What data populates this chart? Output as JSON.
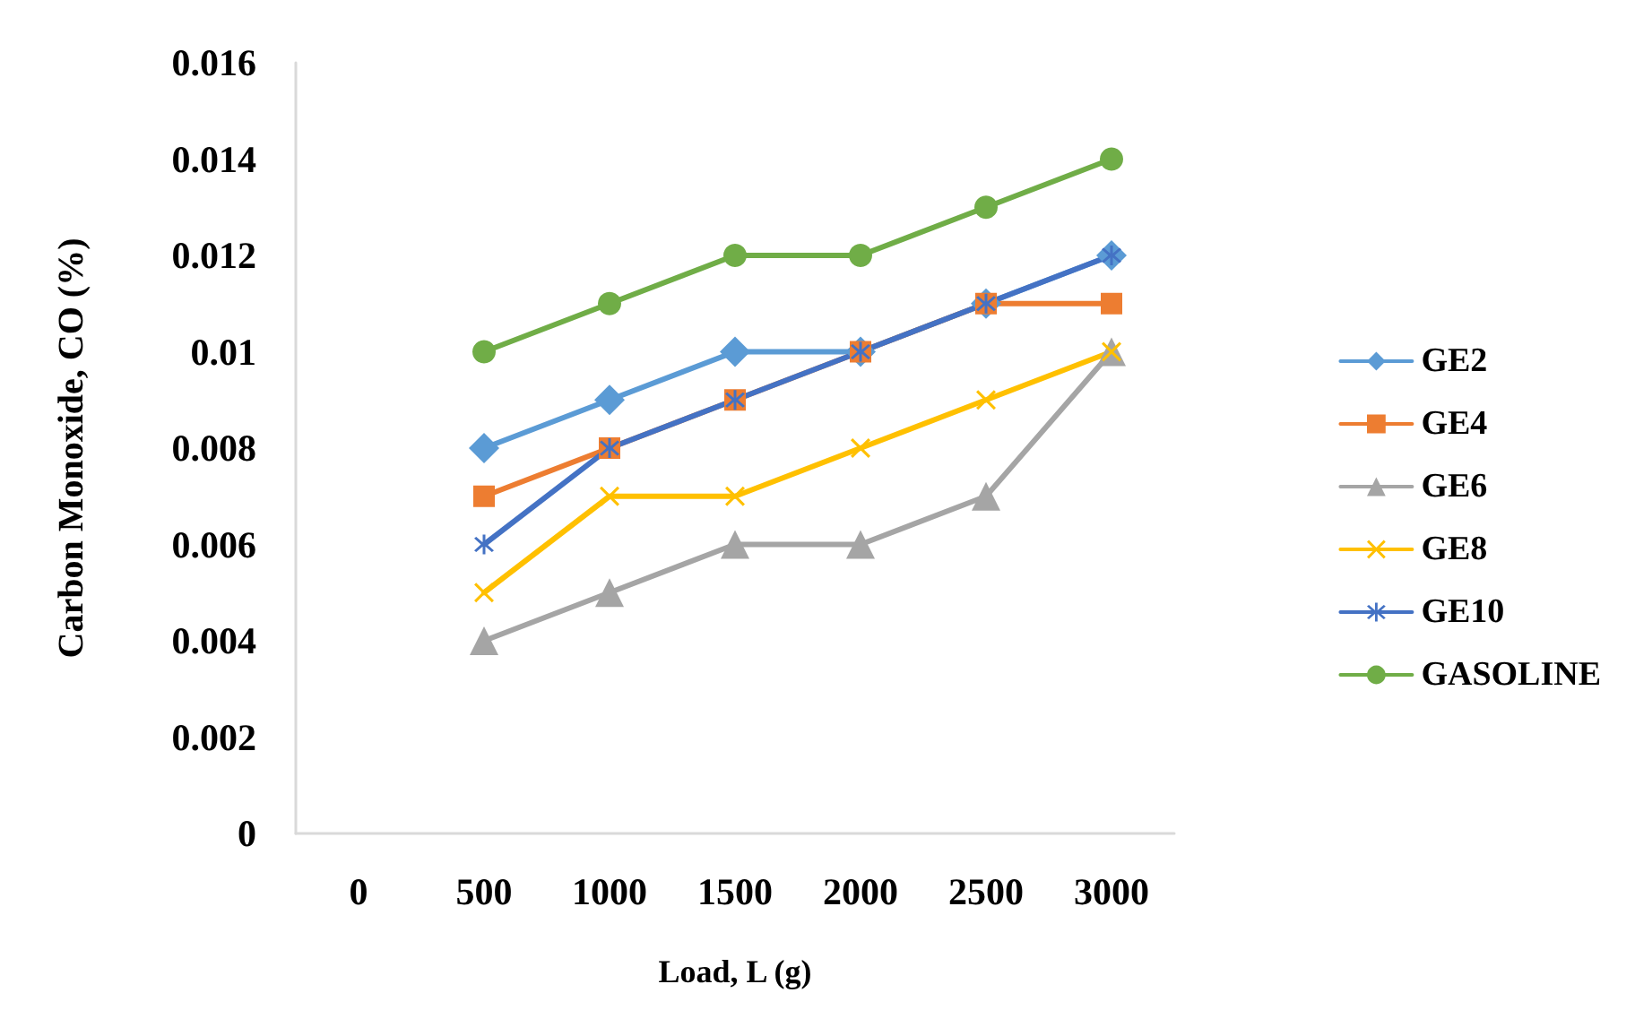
{
  "chart_data": {
    "type": "line",
    "xlabel": "Load, L (g)",
    "ylabel": "Carbon Monoxide, CO (%)",
    "categories": [
      "0",
      "500",
      "1000",
      "1500",
      "2000",
      "2500",
      "3000"
    ],
    "ylim": [
      0,
      0.016
    ],
    "yticks": [
      {
        "value": 0,
        "label": "0"
      },
      {
        "value": 0.002,
        "label": "0.002"
      },
      {
        "value": 0.004,
        "label": "0.004"
      },
      {
        "value": 0.006,
        "label": "0.006"
      },
      {
        "value": 0.008,
        "label": "0.008"
      },
      {
        "value": 0.01,
        "label": "0.01"
      },
      {
        "value": 0.012,
        "label": "0.012"
      },
      {
        "value": 0.014,
        "label": "0.014"
      },
      {
        "value": 0.016,
        "label": "0.016"
      }
    ],
    "grid": false,
    "legend": "right",
    "line_style": "solid",
    "series": [
      {
        "name": "GE2",
        "color": "#5b9bd5",
        "marker": "diamond",
        "values": [
          null,
          0.008,
          0.009,
          0.01,
          0.01,
          0.011,
          0.012
        ]
      },
      {
        "name": "GE4",
        "color": "#ed7d31",
        "marker": "square",
        "values": [
          null,
          0.007,
          0.008,
          0.009,
          0.01,
          0.011,
          0.011
        ]
      },
      {
        "name": "GE6",
        "color": "#a5a5a5",
        "marker": "triangle",
        "values": [
          null,
          0.004,
          0.005,
          0.006,
          0.006,
          0.007,
          0.01
        ]
      },
      {
        "name": "GE8",
        "color": "#ffc000",
        "marker": "cross",
        "values": [
          null,
          0.005,
          0.007,
          0.007,
          0.008,
          0.009,
          0.01
        ]
      },
      {
        "name": "GE10",
        "color": "#4472c4",
        "marker": "star",
        "values": [
          null,
          0.006,
          0.008,
          0.009,
          0.01,
          0.011,
          0.012
        ]
      },
      {
        "name": "GASOLINE",
        "color": "#70ad47",
        "marker": "circle",
        "values": [
          null,
          0.01,
          0.011,
          0.012,
          0.012,
          0.013,
          0.014
        ]
      }
    ]
  }
}
